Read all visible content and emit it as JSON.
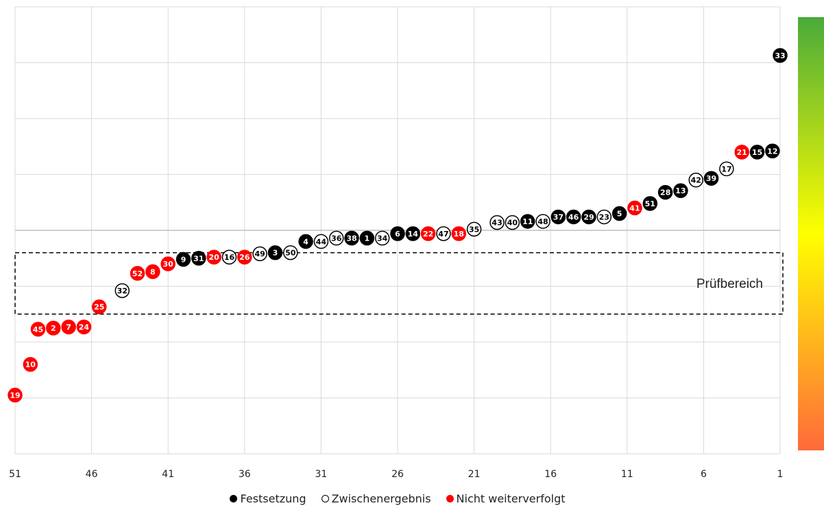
{
  "chart_data": {
    "type": "scatter",
    "title": "",
    "xlabel": "",
    "ylabel": "",
    "x_ticks": [
      "51",
      "46",
      "41",
      "36",
      "31",
      "26",
      "21",
      "16",
      "11",
      "6",
      "1"
    ],
    "x_range": [
      51,
      1
    ],
    "y_range": [
      0,
      8
    ],
    "grid": true,
    "band_label": "Prüfbereich",
    "legend_position": "bottom",
    "colors": {
      "festsetzung": "#000000",
      "zwischenergebnis": "#ffffff",
      "nicht": "#ff0000",
      "grid": "#d9d9d9",
      "midline": "#bfbfbf"
    },
    "gradient_colors": [
      "#4aaa3a",
      "#ffff00",
      "#ff6a3a"
    ],
    "series": [
      {
        "name": "Festsetzung",
        "kind": "festsetzung",
        "points": [
          {
            "x": 1,
            "y": 7.13,
            "label": "33"
          },
          {
            "x": 1.5,
            "y": 5.42,
            "label": "12"
          },
          {
            "x": 2.5,
            "y": 5.4,
            "label": "15"
          },
          {
            "x": 5.5,
            "y": 4.93,
            "label": "39"
          },
          {
            "x": 7.5,
            "y": 4.71,
            "label": "13"
          },
          {
            "x": 8.5,
            "y": 4.68,
            "label": "28"
          },
          {
            "x": 9.5,
            "y": 4.48,
            "label": "51"
          },
          {
            "x": 11.5,
            "y": 4.3,
            "label": "5"
          },
          {
            "x": 13.5,
            "y": 4.24,
            "label": "29"
          },
          {
            "x": 14.5,
            "y": 4.24,
            "label": "46"
          },
          {
            "x": 15.5,
            "y": 4.24,
            "label": "37"
          },
          {
            "x": 17.5,
            "y": 4.16,
            "label": "11"
          },
          {
            "x": 25,
            "y": 3.94,
            "label": "14"
          },
          {
            "x": 26,
            "y": 3.94,
            "label": "6"
          },
          {
            "x": 28,
            "y": 3.86,
            "label": "1"
          },
          {
            "x": 29,
            "y": 3.86,
            "label": "38"
          },
          {
            "x": 32,
            "y": 3.8,
            "label": "4"
          },
          {
            "x": 34,
            "y": 3.6,
            "label": "3"
          },
          {
            "x": 39,
            "y": 3.5,
            "label": "31"
          },
          {
            "x": 40,
            "y": 3.48,
            "label": "9"
          }
        ]
      },
      {
        "name": "Zwischenergebnis",
        "kind": "zwischenergebnis",
        "points": [
          {
            "x": 4.5,
            "y": 5.1,
            "label": "17"
          },
          {
            "x": 6.5,
            "y": 4.9,
            "label": "42"
          },
          {
            "x": 12.5,
            "y": 4.24,
            "label": "23"
          },
          {
            "x": 16.5,
            "y": 4.16,
            "label": "48"
          },
          {
            "x": 18.5,
            "y": 4.14,
            "label": "40"
          },
          {
            "x": 19.5,
            "y": 4.14,
            "label": "43"
          },
          {
            "x": 21,
            "y": 4.02,
            "label": "35"
          },
          {
            "x": 23,
            "y": 3.94,
            "label": "47"
          },
          {
            "x": 27,
            "y": 3.86,
            "label": "34"
          },
          {
            "x": 30,
            "y": 3.86,
            "label": "36"
          },
          {
            "x": 31,
            "y": 3.8,
            "label": "44"
          },
          {
            "x": 33,
            "y": 3.6,
            "label": "50"
          },
          {
            "x": 35,
            "y": 3.58,
            "label": "49"
          },
          {
            "x": 37,
            "y": 3.52,
            "label": "16"
          },
          {
            "x": 44,
            "y": 2.92,
            "label": "32"
          }
        ]
      },
      {
        "name": "Nicht weiterverfolgt",
        "kind": "nicht",
        "points": [
          {
            "x": 3.5,
            "y": 5.4,
            "label": "21"
          },
          {
            "x": 10.5,
            "y": 4.4,
            "label": "41"
          },
          {
            "x": 22,
            "y": 3.94,
            "label": "18"
          },
          {
            "x": 24,
            "y": 3.94,
            "label": "22"
          },
          {
            "x": 36,
            "y": 3.52,
            "label": "26"
          },
          {
            "x": 38,
            "y": 3.52,
            "label": "20"
          },
          {
            "x": 41,
            "y": 3.4,
            "label": "30"
          },
          {
            "x": 42,
            "y": 3.26,
            "label": "8"
          },
          {
            "x": 43,
            "y": 3.23,
            "label": "52"
          },
          {
            "x": 45.5,
            "y": 2.63,
            "label": "25"
          },
          {
            "x": 46.5,
            "y": 2.27,
            "label": "24"
          },
          {
            "x": 47.5,
            "y": 2.27,
            "label": "7"
          },
          {
            "x": 48.5,
            "y": 2.25,
            "label": "2"
          },
          {
            "x": 49.5,
            "y": 2.23,
            "label": "45"
          },
          {
            "x": 50,
            "y": 1.6,
            "label": "10"
          },
          {
            "x": 51,
            "y": 1.05,
            "label": "19"
          }
        ]
      }
    ]
  },
  "legend": {
    "festsetzung": "Festsetzung",
    "zwischenergebnis": "Zwischenergebnis",
    "nicht": "Nicht weiterverfolgt"
  }
}
